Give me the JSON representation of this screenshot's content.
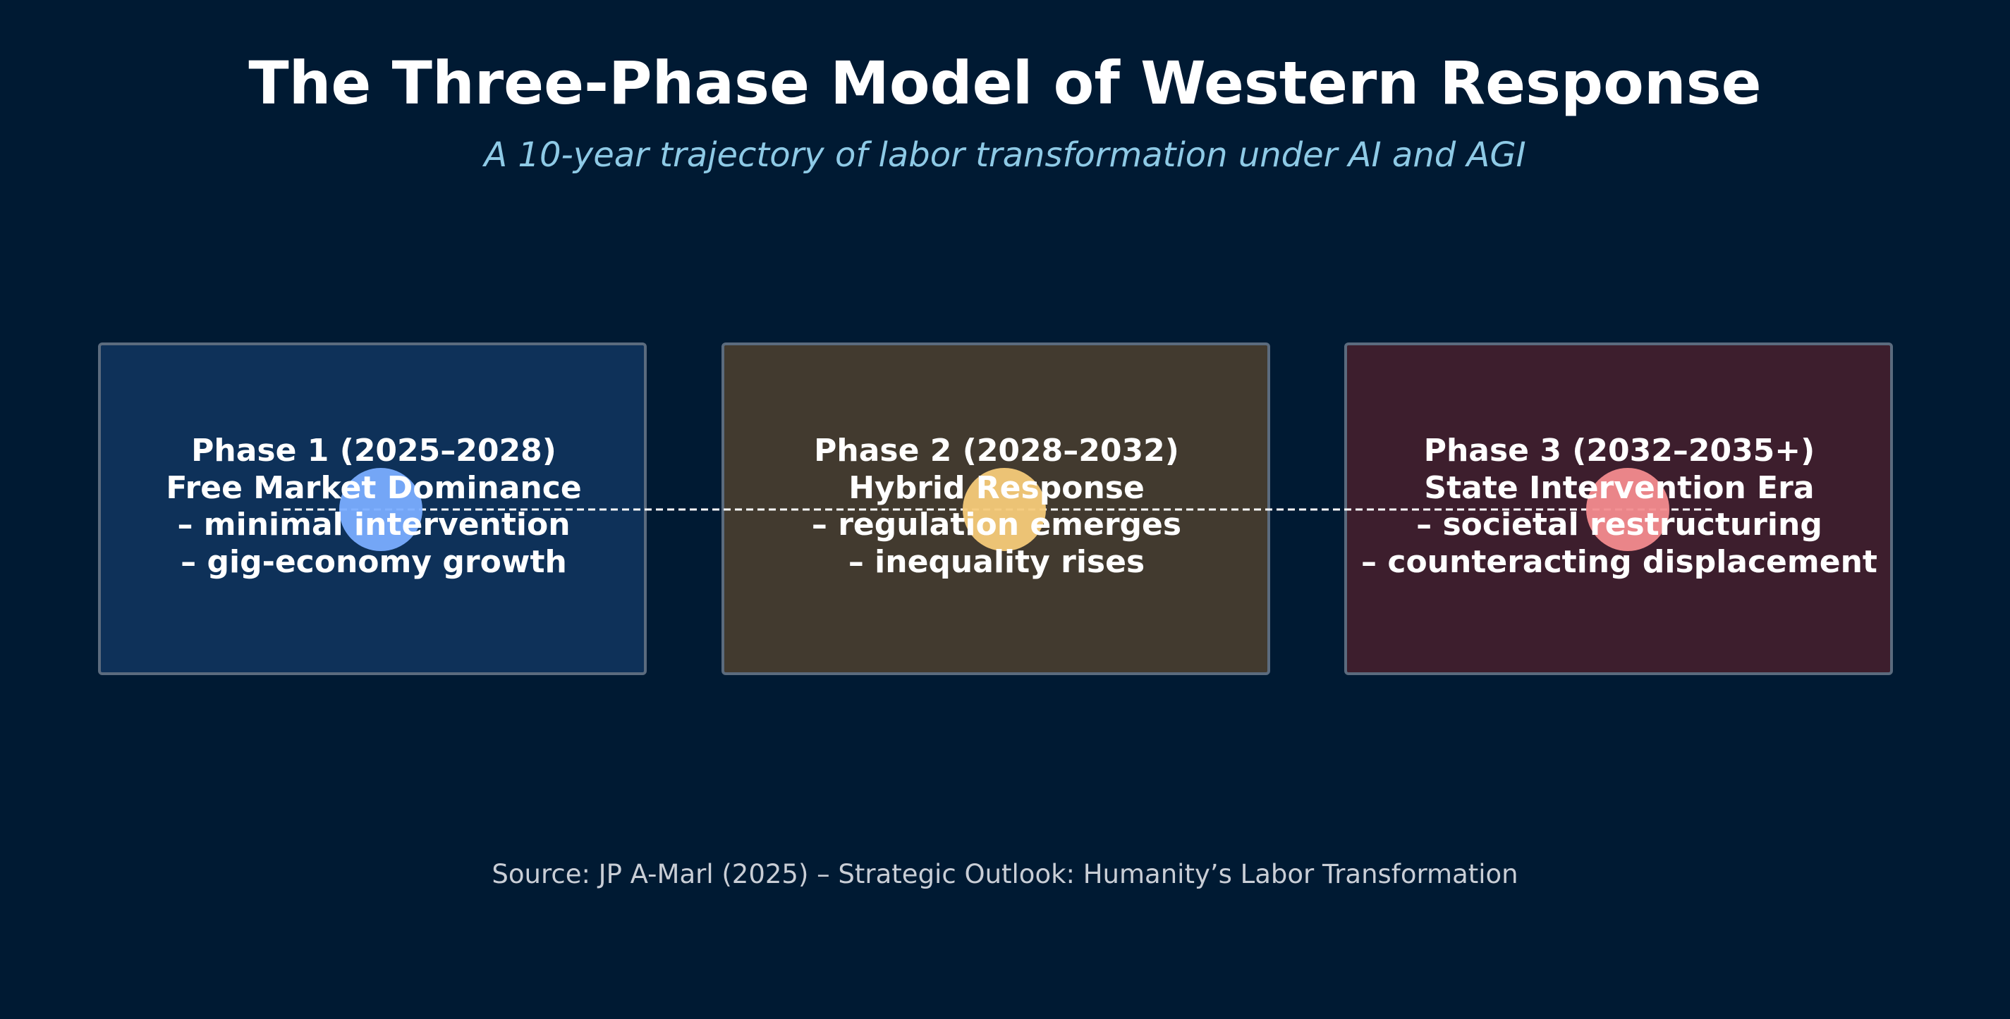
{
  "title": "The Three-Phase Model of Western Response",
  "subtitle": "A 10-year trajectory of labor transformation under AI and AGI",
  "phases": [
    {
      "heading": "Phase 1 (2025–2028)",
      "name": "Free Market Dominance",
      "points": [
        "– minimal intervention",
        "– gig-economy growth"
      ],
      "box_color": "#0e3159",
      "marker_color": "#7aadff"
    },
    {
      "heading": "Phase 2 (2028–2032)",
      "name": "Hybrid Response",
      "points": [
        "– regulation emerges",
        "– inequality rises"
      ],
      "box_color": "#423a2f",
      "marker_color": "#f6ca79"
    },
    {
      "heading": "Phase 3 (2032–2035+)",
      "name": "State Intervention Era",
      "points": [
        "– societal restructuring",
        "– counteracting displacement"
      ],
      "box_color": "#3d1e2d",
      "marker_color": "#f38b8e"
    }
  ],
  "source": "Source: JP A-Marl (2025) – Strategic Outlook: Humanity’s Labor Transformation",
  "colors": {
    "background": "#001a33",
    "subtitle": "#8ecae6",
    "box_border": "#5b6b7e",
    "connector": "#ffffff"
  }
}
